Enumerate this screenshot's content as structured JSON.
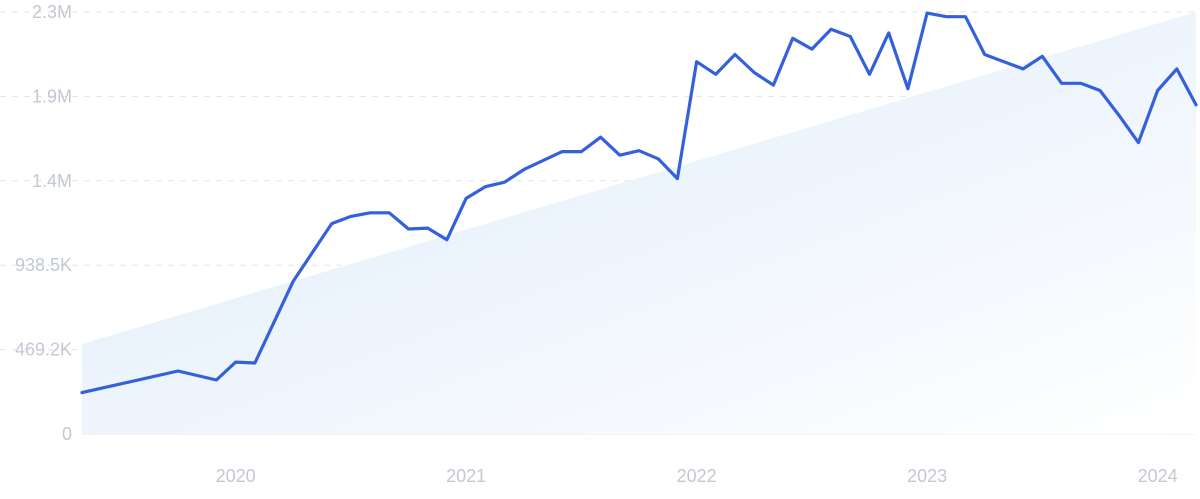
{
  "chart_data": {
    "type": "line",
    "title": "",
    "xlabel": "",
    "ylabel": "",
    "y_tick_labels": [
      "0",
      "469.2K",
      "938.5K",
      "1.4M",
      "1.9M",
      "2.3M"
    ],
    "y_tick_values": [
      0,
      469200,
      938500,
      1407700,
      1877000,
      2346200
    ],
    "ylim": [
      0,
      2346200
    ],
    "x_tick_labels": [
      "2020",
      "2021",
      "2022",
      "2023",
      "2024"
    ],
    "x_tick_values": [
      "2020-01",
      "2021-01",
      "2022-01",
      "2023-01",
      "2024-01"
    ],
    "xlim": [
      "2019-05",
      "2024-03"
    ],
    "grid": true,
    "colors": {
      "line": "#3461db",
      "trend_fill": "#e3eefb",
      "grid": "#dfe3ea",
      "tick_text": "#c3c8d1"
    },
    "series": [
      {
        "points": [
          [
            "2019-05",
            230000
          ],
          [
            "2019-10",
            350000
          ],
          [
            "2019-12",
            300000
          ],
          [
            "2020-01",
            400000
          ],
          [
            "2020-02",
            395000
          ],
          [
            "2020-04",
            850000
          ],
          [
            "2020-06",
            1170000
          ],
          [
            "2020-07",
            1210000
          ],
          [
            "2020-08",
            1230000
          ],
          [
            "2020-09",
            1230000
          ],
          [
            "2020-10",
            1140000
          ],
          [
            "2020-11",
            1145000
          ],
          [
            "2020-12",
            1080000
          ],
          [
            "2021-01",
            1310000
          ],
          [
            "2021-02",
            1375000
          ],
          [
            "2021-03",
            1400000
          ],
          [
            "2021-04",
            1470000
          ],
          [
            "2021-05",
            1520000
          ],
          [
            "2021-06",
            1570000
          ],
          [
            "2021-07",
            1570000
          ],
          [
            "2021-08",
            1650000
          ],
          [
            "2021-09",
            1550000
          ],
          [
            "2021-10",
            1575000
          ],
          [
            "2021-11",
            1530000
          ],
          [
            "2021-12",
            1420000
          ],
          [
            "2022-01",
            2070000
          ],
          [
            "2022-02",
            2000000
          ],
          [
            "2022-03",
            2110000
          ],
          [
            "2022-04",
            2010000
          ],
          [
            "2022-05",
            1940000
          ],
          [
            "2022-06",
            2200000
          ],
          [
            "2022-07",
            2140000
          ],
          [
            "2022-08",
            2250000
          ],
          [
            "2022-09",
            2210000
          ],
          [
            "2022-10",
            2000000
          ],
          [
            "2022-11",
            2230000
          ],
          [
            "2022-12",
            1920000
          ],
          [
            "2023-01",
            2340000
          ],
          [
            "2023-02",
            2320000
          ],
          [
            "2023-03",
            2320000
          ],
          [
            "2023-04",
            2110000
          ],
          [
            "2023-05",
            2070000
          ],
          [
            "2023-06",
            2030000
          ],
          [
            "2023-07",
            2100000
          ],
          [
            "2023-08",
            1950000
          ],
          [
            "2023-09",
            1950000
          ],
          [
            "2023-10",
            1910000
          ],
          [
            "2023-11",
            1770000
          ],
          [
            "2023-12",
            1620000
          ],
          [
            "2024-01",
            1910000
          ],
          [
            "2024-02",
            2030000
          ],
          [
            "2024-03",
            1830000
          ]
        ]
      }
    ],
    "trend": {
      "start": [
        "2019-05",
        500000
      ],
      "end": [
        "2024-03",
        2346200
      ]
    }
  }
}
